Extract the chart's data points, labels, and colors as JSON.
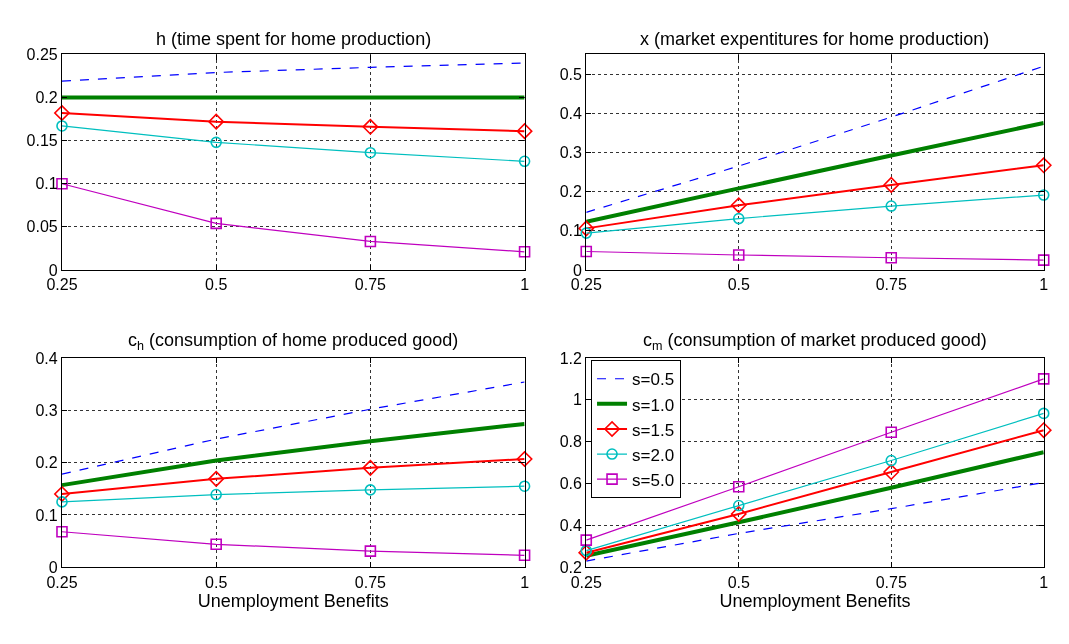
{
  "chart_data": [
    {
      "type": "line",
      "title": "h (time spent for home production)",
      "x": [
        0.25,
        0.5,
        0.75,
        1
      ],
      "xlim": [
        0.25,
        1
      ],
      "xticks": [
        0.25,
        0.5,
        0.75,
        1
      ],
      "ylim": [
        0,
        0.25
      ],
      "yticks": [
        0,
        0.05,
        0.1,
        0.15,
        0.2,
        0.25
      ],
      "grid": true,
      "legend": false,
      "series": [
        {
          "color": "#0000ff",
          "line_style": "dashed",
          "marker": "none",
          "values": [
            0.219,
            0.229,
            0.235,
            0.24
          ]
        },
        {
          "color": "#008000",
          "line_style": "solid",
          "marker": "none",
          "values": [
            0.2,
            0.2,
            0.2,
            0.2
          ]
        },
        {
          "color": "#ff0000",
          "line_style": "solid",
          "marker": "diamond",
          "values": [
            0.182,
            0.172,
            0.166,
            0.161
          ]
        },
        {
          "color": "#00bfbf",
          "line_style": "solid",
          "marker": "circle",
          "values": [
            0.167,
            0.148,
            0.136,
            0.126
          ]
        },
        {
          "color": "#bf00bf",
          "line_style": "solid",
          "marker": "square",
          "values": [
            0.1,
            0.054,
            0.033,
            0.021
          ]
        }
      ]
    },
    {
      "type": "line",
      "title": "x (market expentitures for home production)",
      "x": [
        0.25,
        0.5,
        0.75,
        1
      ],
      "xlim": [
        0.25,
        1
      ],
      "xticks": [
        0.25,
        0.5,
        0.75,
        1
      ],
      "ylim": [
        0,
        0.55
      ],
      "yticks": [
        0,
        0.1,
        0.2,
        0.3,
        0.4,
        0.5
      ],
      "grid": true,
      "legend": false,
      "series": [
        {
          "color": "#0000ff",
          "line_style": "dashed",
          "marker": "none",
          "values": [
            0.147,
            0.265,
            0.39,
            0.52
          ]
        },
        {
          "color": "#008000",
          "line_style": "solid",
          "marker": "none",
          "values": [
            0.123,
            0.208,
            0.292,
            0.375
          ]
        },
        {
          "color": "#ff0000",
          "line_style": "solid",
          "marker": "diamond",
          "values": [
            0.106,
            0.165,
            0.217,
            0.267
          ]
        },
        {
          "color": "#00bfbf",
          "line_style": "solid",
          "marker": "circle",
          "values": [
            0.094,
            0.131,
            0.163,
            0.191
          ]
        },
        {
          "color": "#bf00bf",
          "line_style": "solid",
          "marker": "square",
          "values": [
            0.047,
            0.038,
            0.031,
            0.025
          ]
        }
      ]
    },
    {
      "type": "line",
      "title": "c$_{h}$ (consumption of home produced good)",
      "xlabel": "Unemployment Benefits",
      "x": [
        0.25,
        0.5,
        0.75,
        1
      ],
      "xlim": [
        0.25,
        1
      ],
      "xticks": [
        0.25,
        0.5,
        0.75,
        1
      ],
      "ylim": [
        0,
        0.4
      ],
      "yticks": [
        0,
        0.1,
        0.2,
        0.3,
        0.4
      ],
      "grid": true,
      "legend": false,
      "series": [
        {
          "color": "#0000ff",
          "line_style": "dashed",
          "marker": "none",
          "values": [
            0.178,
            0.245,
            0.302,
            0.354
          ]
        },
        {
          "color": "#008000",
          "line_style": "solid",
          "marker": "none",
          "values": [
            0.157,
            0.204,
            0.241,
            0.274
          ]
        },
        {
          "color": "#ff0000",
          "line_style": "solid",
          "marker": "diamond",
          "values": [
            0.14,
            0.169,
            0.19,
            0.207
          ]
        },
        {
          "color": "#00bfbf",
          "line_style": "solid",
          "marker": "circle",
          "values": [
            0.125,
            0.139,
            0.148,
            0.155
          ]
        },
        {
          "color": "#bf00bf",
          "line_style": "solid",
          "marker": "square",
          "values": [
            0.068,
            0.044,
            0.031,
            0.023
          ]
        }
      ]
    },
    {
      "type": "line",
      "title": "c$_{m}$ (consumption of market produced good)",
      "xlabel": "Unemployment Benefits",
      "x": [
        0.25,
        0.5,
        0.75,
        1
      ],
      "xlim": [
        0.25,
        1
      ],
      "xticks": [
        0.25,
        0.5,
        0.75,
        1
      ],
      "ylim": [
        0.2,
        1.2
      ],
      "yticks": [
        0.2,
        0.4,
        0.6,
        0.8,
        1,
        1.2
      ],
      "grid": true,
      "legend": "top left",
      "series": [
        {
          "name": "s=0.5",
          "color": "#0000ff",
          "line_style": "dashed",
          "marker": "none",
          "values": [
            0.23,
            0.362,
            0.48,
            0.605
          ]
        },
        {
          "name": "s=1.0",
          "color": "#008000",
          "line_style": "solid",
          "marker": "none",
          "values": [
            0.255,
            0.415,
            0.58,
            0.75
          ]
        },
        {
          "name": "s=1.5",
          "color": "#ff0000",
          "line_style": "solid",
          "marker": "diamond",
          "values": [
            0.27,
            0.455,
            0.655,
            0.855
          ]
        },
        {
          "name": "s=2.0",
          "color": "#00bfbf",
          "line_style": "solid",
          "marker": "circle",
          "values": [
            0.28,
            0.495,
            0.71,
            0.935
          ]
        },
        {
          "name": "s=5.0",
          "color": "#bf00bf",
          "line_style": "solid",
          "marker": "square",
          "values": [
            0.33,
            0.585,
            0.845,
            1.1
          ]
        }
      ]
    }
  ]
}
